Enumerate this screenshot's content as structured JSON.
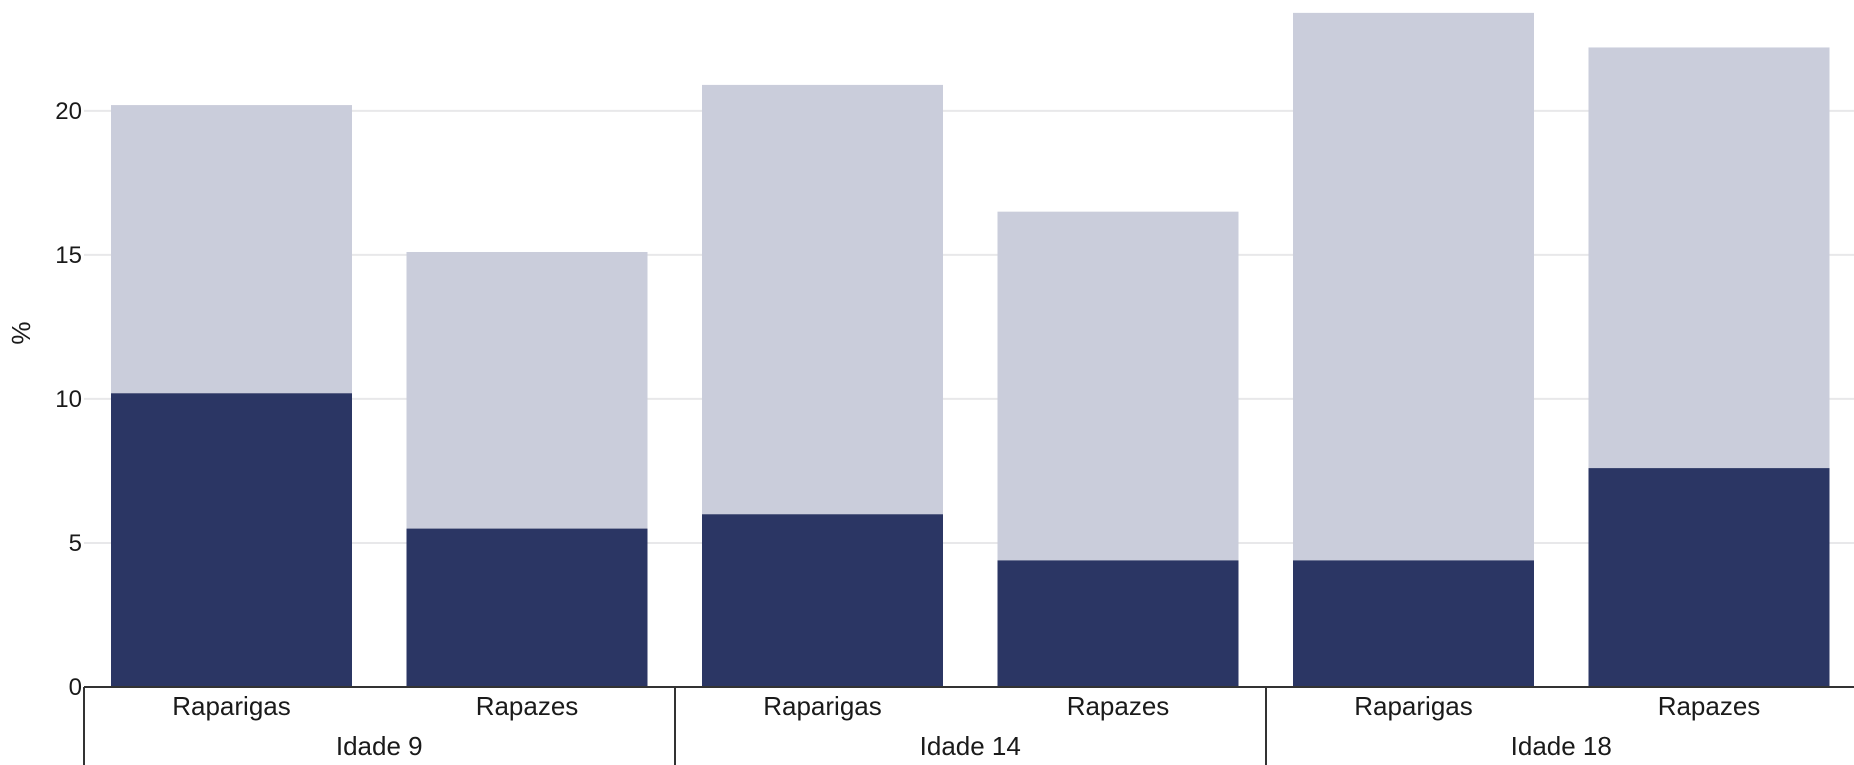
{
  "chart_data": {
    "type": "bar",
    "stacked": true,
    "ylabel": "%",
    "ylim": [
      0,
      23.5
    ],
    "yticks": [
      0,
      5,
      10,
      15,
      20
    ],
    "grid": true,
    "categories": [
      "Raparigas",
      "Rapazes",
      "Raparigas",
      "Rapazes",
      "Raparigas",
      "Rapazes"
    ],
    "groups": [
      {
        "label": "Idade 9",
        "members": [
          0,
          1
        ]
      },
      {
        "label": "Idade 14",
        "members": [
          2,
          3
        ]
      },
      {
        "label": "Idade 18",
        "members": [
          4,
          5
        ]
      }
    ],
    "series": [
      {
        "values": [
          10.2,
          5.5,
          6.0,
          4.4,
          4.4,
          7.6
        ],
        "color": "#2b3664"
      },
      {
        "values": [
          10.0,
          9.6,
          14.9,
          12.1,
          19.0,
          14.6
        ],
        "color": "#cacddb"
      }
    ],
    "colors": {
      "grid": "#e8e8ea",
      "axis": "#333333"
    }
  }
}
